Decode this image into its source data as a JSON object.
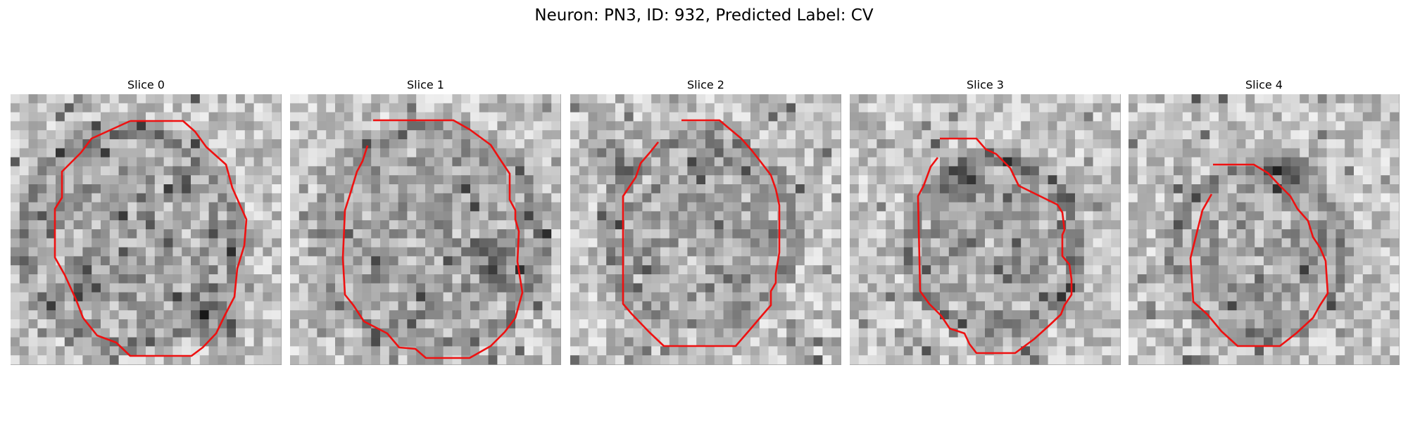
{
  "title": "Neuron: PN3, ID: 932, Predicted Label: CV",
  "colors": {
    "contour": "#ee1111",
    "background": "#ffffff"
  },
  "panels": [
    {
      "title": "Slice 0"
    },
    {
      "title": "Slice 1"
    },
    {
      "title": "Slice 2"
    },
    {
      "title": "Slice 3"
    },
    {
      "title": "Slice 4"
    }
  ]
}
